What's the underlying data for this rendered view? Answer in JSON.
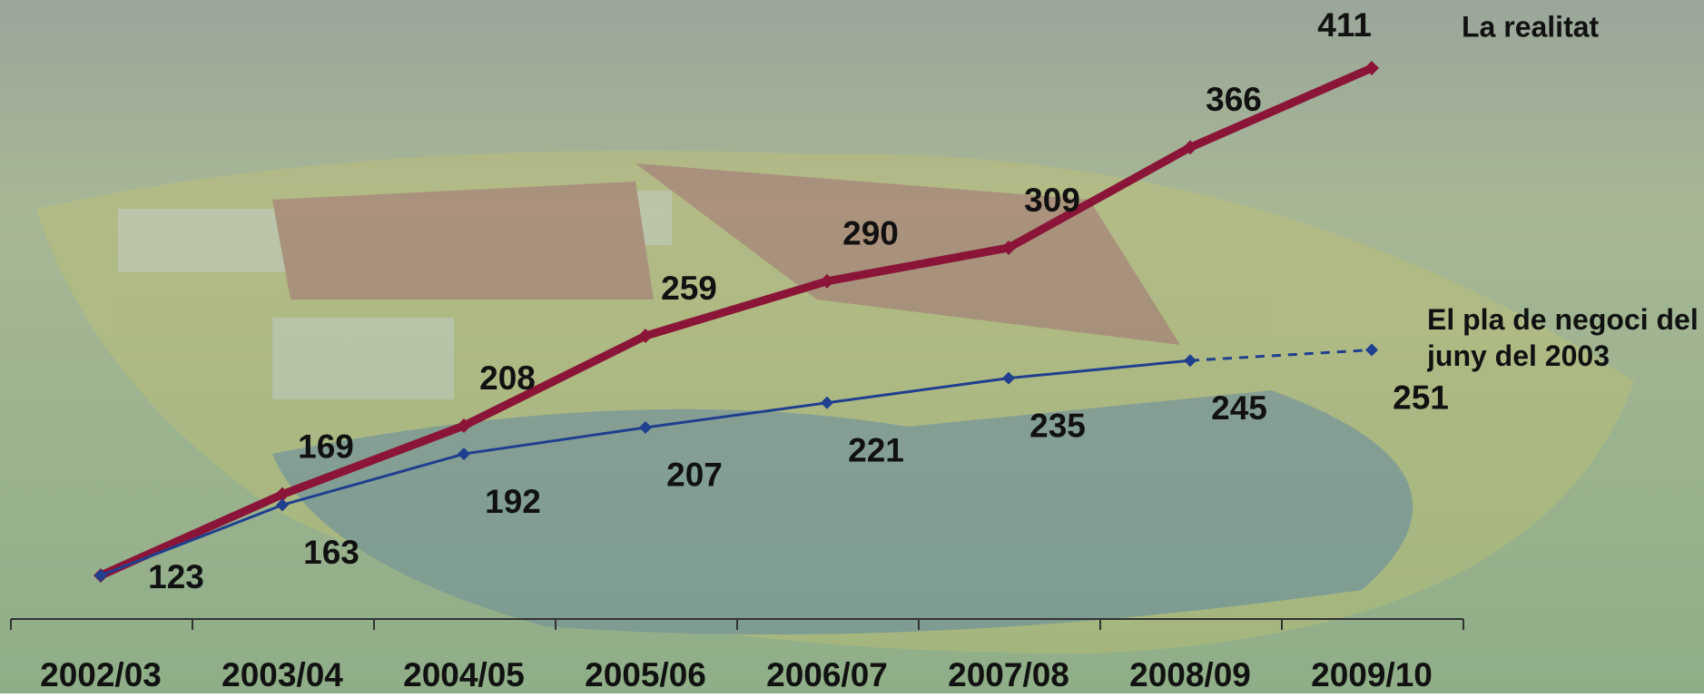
{
  "chart_data": {
    "type": "line",
    "categories": [
      "2002/03",
      "2003/04",
      "2004/05",
      "2005/06",
      "2006/07",
      "2007/08",
      "2008/09",
      "2009/10"
    ],
    "series": [
      {
        "name": "La realitat",
        "color": "#8b1538",
        "values": [
          123,
          169,
          208,
          259,
          290,
          309,
          366,
          411
        ]
      },
      {
        "name": "El pla de negoci del juny del 2003",
        "color": "#1f3f8f",
        "values": [
          123,
          163,
          192,
          207,
          221,
          235,
          245,
          251
        ]
      }
    ]
  }
}
